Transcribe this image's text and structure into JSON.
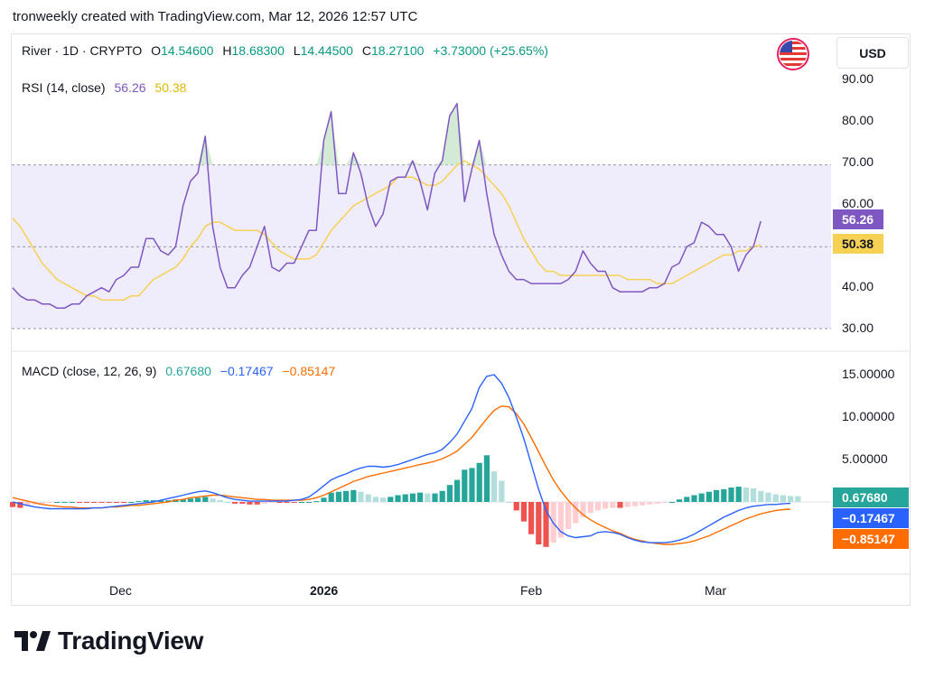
{
  "header": {
    "text": "tronweekly created with TradingView.com, Mar 12, 2026 12:57 UTC"
  },
  "symbol_legend": {
    "symbol": "River · 1D · CRYPTO",
    "o_label": "O",
    "o_value": "14.54600",
    "h_label": "H",
    "h_value": "18.68300",
    "l_label": "L",
    "l_value": "14.44500",
    "c_label": "C",
    "c_value": "18.27100",
    "change": "+3.73000 (+25.65%)"
  },
  "currency": "USD",
  "rsi_legend": {
    "label": "RSI (14, close)",
    "value": "56.26",
    "ma_value": "50.38"
  },
  "macd_legend": {
    "label": "MACD (close, 12, 26, 9)",
    "hist_value": "0.67680",
    "macd_value": "−0.17467",
    "signal_value": "−0.85147"
  },
  "rsi_axis_labels": [
    "90.00",
    "80.00",
    "70.00",
    "60.00",
    "40.00",
    "30.00"
  ],
  "macd_axis_labels": [
    "15.00000",
    "10.00000",
    "5.00000"
  ],
  "badges": {
    "rsi": "56.26",
    "rsi_ma": "50.38",
    "hist": "0.67680",
    "macd": "−0.17467",
    "signal": "−0.85147"
  },
  "time_axis": [
    "Dec",
    "2026",
    "Feb",
    "Mar"
  ],
  "brand": {
    "name": "TradingView"
  },
  "colors": {
    "rsi_line": "#7e57c2",
    "rsi_ma": "#f7d154",
    "macd_line": "#2962ff",
    "signal_line": "#ff6d00",
    "hist_up_strong": "#26a69a",
    "hist_up_weak": "#b2dfdb",
    "hist_down_strong": "#ef5350",
    "hist_down_weak": "#ffcdd2",
    "change_green": "#089981",
    "band_fill": "#efecfb"
  },
  "chart_data": [
    {
      "type": "line",
      "title": "RSI (14, close)",
      "ylim": [
        30,
        90
      ],
      "bands": {
        "upper": 70,
        "middle": 50,
        "lower": 30
      },
      "x_ticks": [
        {
          "label": "Dec",
          "index": 16
        },
        {
          "label": "2026",
          "index": 46
        },
        {
          "label": "Feb",
          "index": 77
        },
        {
          "label": "Mar",
          "index": 105
        }
      ],
      "series": [
        {
          "name": "RSI",
          "values": [
            40,
            38,
            37,
            37,
            36,
            36,
            35,
            35,
            36,
            36,
            38,
            39,
            40,
            39,
            42,
            43,
            45,
            45,
            52,
            52,
            49,
            48,
            50,
            60,
            66,
            68,
            77,
            55,
            45,
            40,
            40,
            43,
            45,
            50,
            55,
            45,
            44,
            46,
            46,
            50,
            54,
            54,
            76,
            83,
            63,
            63,
            73,
            68,
            60,
            55,
            58,
            66,
            67,
            67,
            71,
            66,
            59,
            68,
            71,
            82,
            85,
            61,
            69,
            76,
            63,
            53,
            48,
            44,
            42,
            42,
            41,
            41,
            41,
            41,
            41,
            42,
            44,
            49,
            46,
            44,
            44,
            40,
            39,
            39,
            39,
            39,
            40,
            40,
            41,
            45,
            46,
            50,
            51,
            56,
            55,
            53,
            53,
            50,
            44,
            48,
            50,
            56.26
          ],
          "labels": [
            "",
            ""
          ]
        },
        {
          "name": "RSI-based MA",
          "values": [
            57,
            55,
            52,
            49,
            46,
            44,
            42,
            41,
            40,
            39,
            38,
            38,
            37,
            37,
            37,
            37,
            38,
            38,
            40,
            42,
            43,
            44,
            45,
            47,
            50,
            52,
            55,
            56,
            56,
            55,
            54,
            54,
            54,
            54,
            53,
            51,
            49,
            48,
            47,
            47,
            47,
            48,
            51,
            54,
            56,
            58,
            60,
            61,
            62,
            63,
            64,
            65,
            67,
            67,
            67,
            66,
            65,
            65,
            66,
            68,
            70,
            71,
            70,
            69,
            67,
            65,
            63,
            60,
            56,
            52,
            49,
            46,
            44,
            44,
            43,
            43,
            43,
            43,
            43,
            43,
            43,
            43,
            43,
            42,
            42,
            42,
            42,
            41,
            41,
            41,
            42,
            43,
            44,
            45,
            46,
            47,
            48,
            48,
            49,
            49,
            50,
            50.38
          ]
        }
      ]
    },
    {
      "type": "bar",
      "title": "MACD (close, 12, 26, 9)",
      "ylim": [
        -6,
        16
      ],
      "series": [
        {
          "name": "Histogram",
          "values": [
            -0.6,
            -0.7,
            -0.5,
            -0.3,
            -0.2,
            -0.1,
            0.0,
            0.0,
            0.0,
            -0.1,
            -0.1,
            -0.1,
            -0.1,
            -0.1,
            -0.1,
            -0.1,
            0.0,
            0.1,
            0.2,
            0.2,
            0.2,
            0.2,
            0.3,
            0.3,
            0.4,
            0.5,
            0.6,
            0.4,
            0.2,
            0.0,
            -0.2,
            -0.2,
            -0.3,
            -0.3,
            -0.2,
            -0.1,
            -0.1,
            -0.1,
            -0.1,
            0.0,
            0.0,
            0.1,
            0.5,
            1.1,
            1.2,
            1.3,
            1.4,
            1.2,
            0.9,
            0.6,
            0.5,
            0.6,
            0.8,
            0.9,
            1.0,
            1.1,
            1.0,
            1.0,
            1.3,
            2.0,
            2.6,
            3.8,
            4.0,
            4.6,
            5.5,
            3.6,
            2.5,
            0.0,
            -1.0,
            -2.3,
            -3.8,
            -5.0,
            -5.3,
            -4.8,
            -4.2,
            -3.2,
            -2.5,
            -1.8,
            -1.3,
            -1.0,
            -0.8,
            -0.7,
            -0.7,
            -0.6,
            -0.5,
            -0.4,
            -0.3,
            -0.2,
            -0.1,
            0.0,
            0.3,
            0.6,
            0.8,
            1.0,
            1.2,
            1.4,
            1.5,
            1.7,
            1.8,
            1.7,
            1.6,
            1.3,
            1.1,
            0.9,
            0.8,
            0.7,
            0.6768
          ]
        },
        {
          "name": "MACD",
          "values": [
            0.0,
            -0.2,
            -0.4,
            -0.6,
            -0.7,
            -0.8,
            -0.8,
            -0.8,
            -0.8,
            -0.8,
            -0.8,
            -0.7,
            -0.7,
            -0.6,
            -0.5,
            -0.4,
            -0.3,
            -0.2,
            -0.1,
            0.0,
            0.2,
            0.4,
            0.6,
            0.8,
            1.0,
            1.2,
            1.3,
            1.1,
            0.8,
            0.5,
            0.3,
            0.2,
            0.1,
            0.1,
            0.1,
            0.1,
            0.1,
            0.1,
            0.2,
            0.3,
            0.6,
            1.2,
            1.9,
            2.6,
            3.0,
            3.3,
            3.7,
            4.0,
            4.2,
            4.2,
            4.1,
            4.2,
            4.4,
            4.7,
            5.0,
            5.3,
            5.6,
            5.8,
            6.2,
            7.0,
            8.0,
            9.5,
            11.0,
            13.5,
            14.8,
            15.0,
            14.0,
            12.3,
            10.0,
            7.5,
            4.5,
            1.5,
            -1.0,
            -2.5,
            -3.5,
            -4.0,
            -4.2,
            -4.1,
            -4.0,
            -3.6,
            -3.5,
            -3.6,
            -3.8,
            -4.2,
            -4.5,
            -4.7,
            -4.8,
            -4.8,
            -4.8,
            -4.7,
            -4.5,
            -4.2,
            -3.8,
            -3.3,
            -2.8,
            -2.3,
            -1.8,
            -1.4,
            -1.0,
            -0.7,
            -0.5,
            -0.4,
            -0.3,
            -0.3,
            -0.2,
            -0.17467
          ]
        },
        {
          "name": "Signal",
          "values": [
            0.5,
            0.3,
            0.1,
            -0.1,
            -0.3,
            -0.4,
            -0.5,
            -0.6,
            -0.6,
            -0.7,
            -0.7,
            -0.7,
            -0.7,
            -0.6,
            -0.6,
            -0.5,
            -0.4,
            -0.4,
            -0.3,
            -0.2,
            -0.1,
            0.0,
            0.2,
            0.3,
            0.5,
            0.6,
            0.7,
            0.8,
            0.8,
            0.7,
            0.6,
            0.5,
            0.4,
            0.3,
            0.3,
            0.2,
            0.2,
            0.2,
            0.2,
            0.2,
            0.3,
            0.5,
            0.8,
            1.2,
            1.6,
            2.0,
            2.4,
            2.7,
            3.0,
            3.2,
            3.4,
            3.6,
            3.8,
            4.0,
            4.2,
            4.4,
            4.6,
            4.8,
            5.1,
            5.5,
            6.0,
            6.8,
            7.6,
            8.7,
            9.8,
            10.8,
            11.3,
            11.2,
            10.4,
            9.2,
            7.6,
            5.9,
            4.2,
            2.6,
            1.3,
            0.2,
            -0.7,
            -1.5,
            -2.1,
            -2.6,
            -3.0,
            -3.4,
            -3.7,
            -4.1,
            -4.4,
            -4.6,
            -4.8,
            -4.9,
            -5.0,
            -5.0,
            -4.9,
            -4.8,
            -4.6,
            -4.3,
            -4.0,
            -3.6,
            -3.2,
            -2.8,
            -2.4,
            -2.0,
            -1.7,
            -1.4,
            -1.2,
            -1.0,
            -0.9,
            -0.85147
          ]
        }
      ]
    }
  ]
}
